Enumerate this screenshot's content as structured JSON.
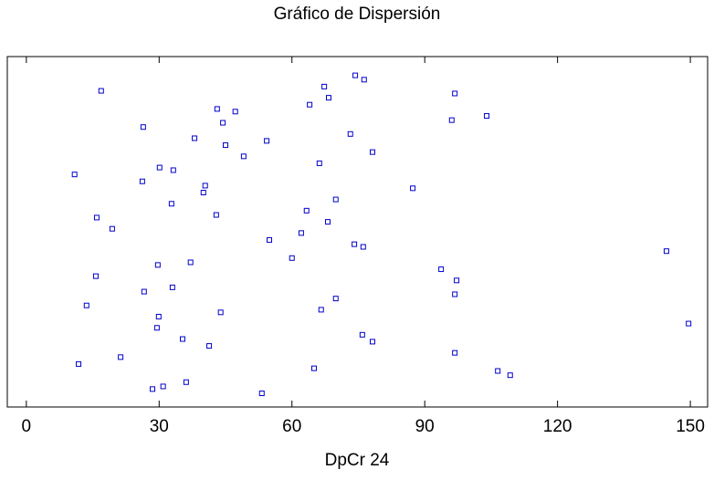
{
  "chart_data": {
    "type": "scatter",
    "title": "Gráfico de Dispersión",
    "x_label": "DpCr 24",
    "color": "#0000cc",
    "xlim": [
      -4.3,
      153.9
    ],
    "xticks": [
      0,
      30,
      60,
      90,
      120,
      150
    ],
    "x": [
      47.2,
      43.9,
      87.3,
      28.5,
      29.7,
      54.3,
      78.2,
      15.9,
      96.8,
      96.8,
      33.2,
      106.5,
      76.1,
      44.4,
      149.6,
      69.9,
      74.3,
      15.7,
      78.2,
      96.8,
      19.4,
      64.0,
      13.6,
      26.2,
      36.1,
      60.0,
      73.2,
      75.9,
      63.3,
      67.3,
      33.0,
      66.2,
      11.8,
      54.9,
      104.0,
      29.9,
      40.0,
      53.2,
      93.7,
      45.0,
      41.3,
      68.1,
      68.3,
      69.9,
      10.9,
      109.3,
      144.6,
      26.4,
      29.5,
      32.8,
      76.3,
      97.2,
      49.1,
      21.3,
      62.1,
      43.1,
      66.6,
      40.4,
      30.9,
      37.1,
      38.0,
      35.3,
      42.9,
      16.9,
      26.6,
      30.1,
      65.0,
      74.1,
      96.1
    ]
  }
}
